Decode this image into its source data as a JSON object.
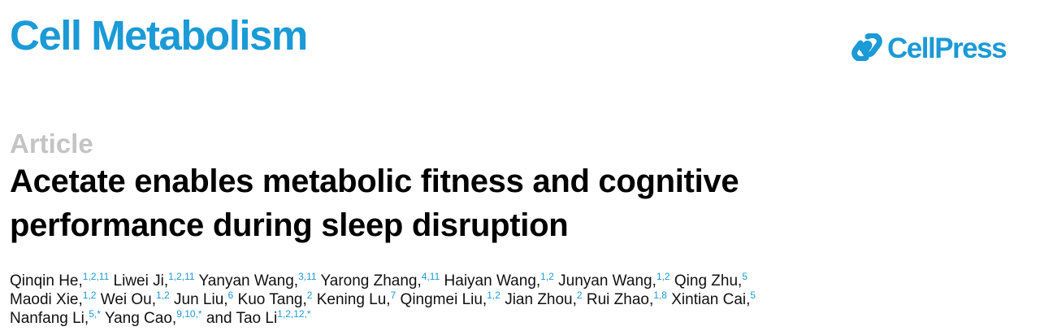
{
  "header": {
    "journal": "Cell Metabolism",
    "publisher": "CellPress",
    "publisher_icon": "cellpress-logo-icon",
    "brand_color": "#1a9ad6"
  },
  "article": {
    "type": "Article",
    "title_lines": [
      "Acetate enables metabolic fitness and cognitive",
      "performance during sleep disruption"
    ]
  },
  "authors": [
    [
      {
        "name": "Qinqin He,",
        "sup": "1,2,11"
      },
      {
        "name": "Liwei Ji,",
        "sup": "1,2,11"
      },
      {
        "name": "Yanyan Wang,",
        "sup": "3,11"
      },
      {
        "name": "Yarong Zhang,",
        "sup": "4,11"
      },
      {
        "name": "Haiyan Wang,",
        "sup": "1,2"
      },
      {
        "name": "Junyan Wang,",
        "sup": "1,2"
      },
      {
        "name": "Qing Zhu,",
        "sup": "5"
      }
    ],
    [
      {
        "name": "Maodi Xie,",
        "sup": "1,2"
      },
      {
        "name": "Wei Ou,",
        "sup": "1,2"
      },
      {
        "name": "Jun Liu,",
        "sup": "6"
      },
      {
        "name": "Kuo Tang,",
        "sup": "2"
      },
      {
        "name": "Kening Lu,",
        "sup": "7"
      },
      {
        "name": "Qingmei Liu,",
        "sup": "1,2"
      },
      {
        "name": "Jian Zhou,",
        "sup": "2"
      },
      {
        "name": "Rui Zhao,",
        "sup": "1,8"
      },
      {
        "name": "Xintian Cai,",
        "sup": "5"
      }
    ],
    [
      {
        "name": "Nanfang Li,",
        "sup": "5,*"
      },
      {
        "name": "Yang Cao,",
        "sup": "9,10,*"
      },
      {
        "name": "and Tao Li",
        "sup": "1,2,12,*"
      }
    ]
  ]
}
